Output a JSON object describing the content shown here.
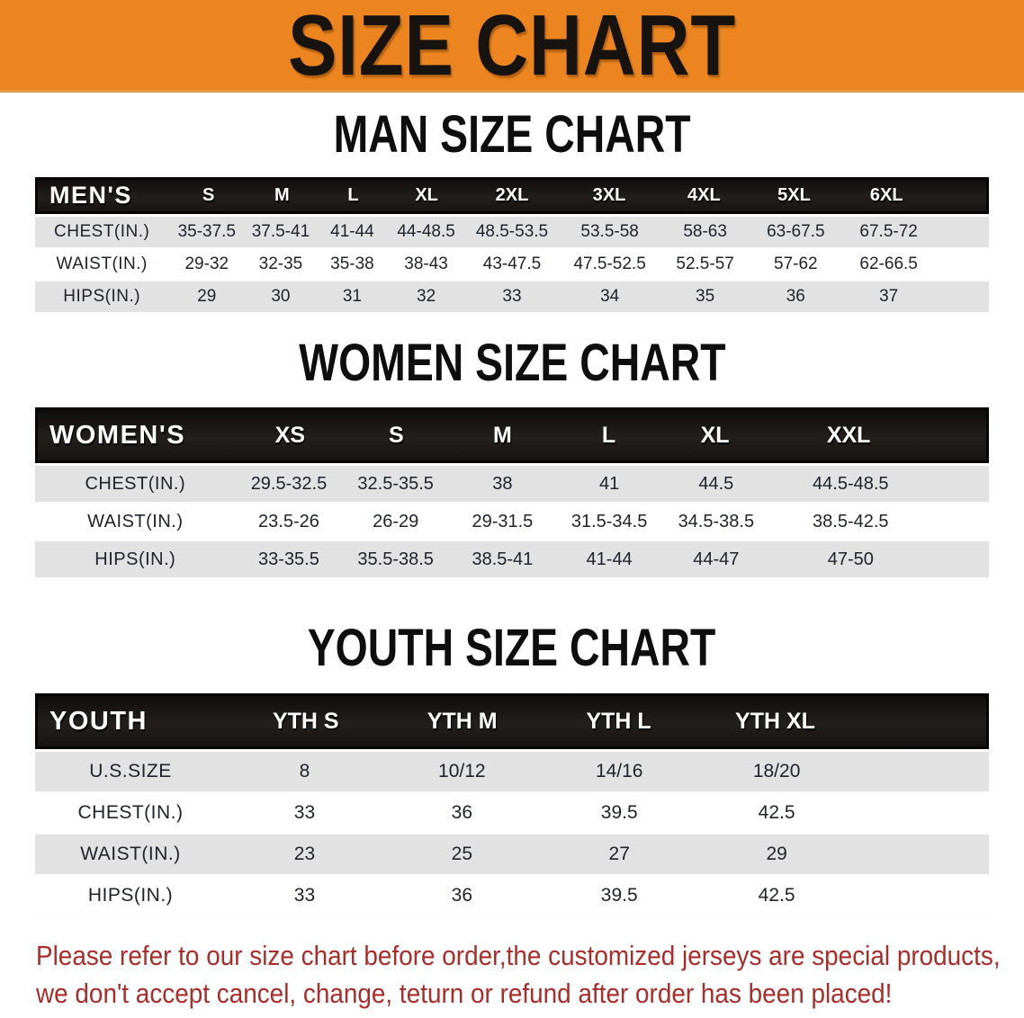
{
  "banner": {
    "title": "SIZE CHART",
    "bg_color": "#ec851f",
    "text_color": "#171310"
  },
  "men": {
    "heading": "MAN SIZE CHART",
    "label": "MEN'S",
    "columns": [
      "S",
      "M",
      "L",
      "XL",
      "2XL",
      "3XL",
      "4XL",
      "5XL",
      "6XL"
    ],
    "rows": [
      {
        "label": "CHEST(IN.)",
        "values": [
          "35-37.5",
          "37.5-41",
          "41-44",
          "44-48.5",
          "48.5-53.5",
          "53.5-58",
          "58-63",
          "63-67.5",
          "67.5-72"
        ]
      },
      {
        "label": "WAIST(IN.)",
        "values": [
          "29-32",
          "32-35",
          "35-38",
          "38-43",
          "43-47.5",
          "47.5-52.5",
          "52.5-57",
          "57-62",
          "62-66.5"
        ]
      },
      {
        "label": "HIPS(IN.)",
        "values": [
          "29",
          "30",
          "31",
          "32",
          "33",
          "34",
          "35",
          "36",
          "37"
        ]
      }
    ]
  },
  "women": {
    "heading": "WOMEN SIZE CHART",
    "label": "WOMEN'S",
    "columns": [
      "XS",
      "S",
      "M",
      "L",
      "XL",
      "XXL"
    ],
    "rows": [
      {
        "label": "CHEST(IN.)",
        "values": [
          "29.5-32.5",
          "32.5-35.5",
          "38",
          "41",
          "44.5",
          "44.5-48.5"
        ]
      },
      {
        "label": "WAIST(IN.)",
        "values": [
          "23.5-26",
          "26-29",
          "29-31.5",
          "31.5-34.5",
          "34.5-38.5",
          "38.5-42.5"
        ]
      },
      {
        "label": "HIPS(IN.)",
        "values": [
          "33-35.5",
          "35.5-38.5",
          "38.5-41",
          "41-44",
          "44-47",
          "47-50"
        ]
      }
    ]
  },
  "youth": {
    "heading": "YOUTH SIZE CHART",
    "label": "YOUTH",
    "columns": [
      "YTH S",
      "YTH M",
      "YTH L",
      "YTH XL"
    ],
    "rows": [
      {
        "label": "U.S.SIZE",
        "values": [
          "8",
          "10/12",
          "14/16",
          "18/20"
        ]
      },
      {
        "label": "CHEST(IN.)",
        "values": [
          "33",
          "36",
          "39.5",
          "42.5"
        ]
      },
      {
        "label": "WAIST(IN.)",
        "values": [
          "23",
          "25",
          "27",
          "29"
        ]
      },
      {
        "label": "HIPS(IN.)",
        "values": [
          "33",
          "36",
          "39.5",
          "42.5"
        ]
      }
    ]
  },
  "footer": {
    "line1": "Please refer to our size chart before order,the customized jerseys are special products,",
    "line2": "we don't accept cancel, change, teturn or refund after order has been placed!",
    "text_color": "#ab2d2a"
  },
  "colors": {
    "header_bar": "#171412",
    "row_gray": "#e2e2e2",
    "row_white": "#ffffff"
  }
}
